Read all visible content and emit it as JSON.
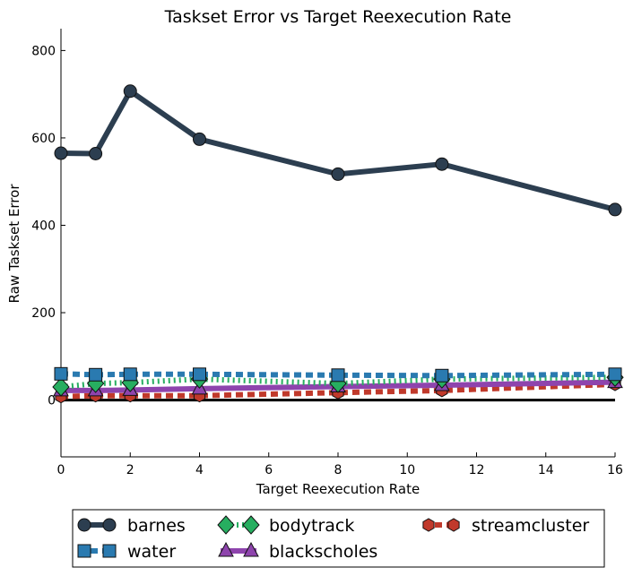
{
  "chart_data": {
    "type": "line",
    "title": "Taskset Error vs Target Reexecution Rate",
    "xlabel": "Target Reexecution Rate",
    "ylabel": "Raw Taskset Error",
    "xlim": [
      0,
      16
    ],
    "ylim": [
      -130,
      850
    ],
    "xticks": [
      0,
      2,
      4,
      6,
      8,
      10,
      12,
      14,
      16
    ],
    "yticks": [
      0,
      200,
      400,
      600,
      800
    ],
    "grid": false,
    "legend_position": "bottom",
    "zero_line": true,
    "series": [
      {
        "name": "barnes",
        "color": "#2c3e50",
        "marker": "circle",
        "style": "solid",
        "x": [
          0,
          1,
          2,
          4,
          8,
          11,
          16
        ],
        "values": [
          565,
          564,
          707,
          597,
          517,
          540,
          436
        ]
      },
      {
        "name": "water",
        "color": "#2a7ab0",
        "marker": "square",
        "style": "dashed",
        "x": [
          0,
          1,
          2,
          4,
          8,
          11,
          16
        ],
        "values": [
          60,
          58,
          59,
          59,
          57,
          56,
          59
        ]
      },
      {
        "name": "bodytrack",
        "color": "#27ae60",
        "marker": "diamond",
        "style": "dotted",
        "x": [
          0,
          1,
          2,
          4,
          8,
          11,
          16
        ],
        "values": [
          30,
          38,
          40,
          48,
          38,
          48,
          52
        ]
      },
      {
        "name": "blackscholes",
        "color": "#8e44ad",
        "marker": "triangle",
        "style": "solid",
        "x": [
          0,
          1,
          2,
          4,
          8,
          11,
          16
        ],
        "values": [
          22,
          22,
          23,
          26,
          31,
          34,
          41
        ]
      },
      {
        "name": "streamcluster",
        "color": "#c0392b",
        "marker": "hexagon",
        "style": "dashed",
        "x": [
          0,
          1,
          2,
          4,
          8,
          11,
          16
        ],
        "values": [
          8,
          10,
          10,
          10,
          17,
          22,
          36
        ]
      }
    ]
  }
}
